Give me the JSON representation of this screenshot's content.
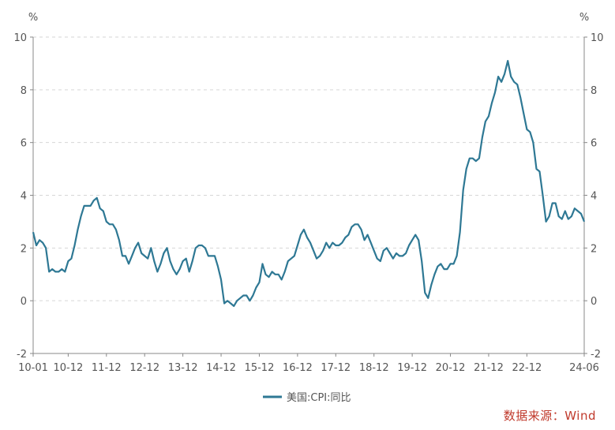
{
  "chart_data": {
    "type": "line",
    "title": "",
    "xlabel": "",
    "ylabel_left": "%",
    "ylabel_right": "%",
    "ylim": [
      -2,
      10
    ],
    "yticks": [
      -2,
      0,
      2,
      4,
      6,
      8,
      10
    ],
    "xlim": [
      "2010-01",
      "2024-06"
    ],
    "xticks": [
      "10-01",
      "10-12",
      "11-12",
      "12-12",
      "13-12",
      "14-12",
      "15-12",
      "16-12",
      "17-12",
      "18-12",
      "19-12",
      "20-12",
      "21-12",
      "22-12",
      "24-06"
    ],
    "grid": "horizontal-dashed",
    "legend": "bottom-center",
    "series": [
      {
        "name": "美国:CPI:同比",
        "color": "#2e7894",
        "x": [
          "2010-01",
          "2010-02",
          "2010-03",
          "2010-04",
          "2010-05",
          "2010-06",
          "2010-07",
          "2010-08",
          "2010-09",
          "2010-10",
          "2010-11",
          "2010-12",
          "2011-01",
          "2011-02",
          "2011-03",
          "2011-04",
          "2011-05",
          "2011-06",
          "2011-07",
          "2011-08",
          "2011-09",
          "2011-10",
          "2011-11",
          "2011-12",
          "2012-01",
          "2012-02",
          "2012-03",
          "2012-04",
          "2012-05",
          "2012-06",
          "2012-07",
          "2012-08",
          "2012-09",
          "2012-10",
          "2012-11",
          "2012-12",
          "2013-01",
          "2013-02",
          "2013-03",
          "2013-04",
          "2013-05",
          "2013-06",
          "2013-07",
          "2013-08",
          "2013-09",
          "2013-10",
          "2013-11",
          "2013-12",
          "2014-01",
          "2014-02",
          "2014-03",
          "2014-04",
          "2014-05",
          "2014-06",
          "2014-07",
          "2014-08",
          "2014-09",
          "2014-10",
          "2014-11",
          "2014-12",
          "2015-01",
          "2015-02",
          "2015-03",
          "2015-04",
          "2015-05",
          "2015-06",
          "2015-07",
          "2015-08",
          "2015-09",
          "2015-10",
          "2015-11",
          "2015-12",
          "2016-01",
          "2016-02",
          "2016-03",
          "2016-04",
          "2016-05",
          "2016-06",
          "2016-07",
          "2016-08",
          "2016-09",
          "2016-10",
          "2016-11",
          "2016-12",
          "2017-01",
          "2017-02",
          "2017-03",
          "2017-04",
          "2017-05",
          "2017-06",
          "2017-07",
          "2017-08",
          "2017-09",
          "2017-10",
          "2017-11",
          "2017-12",
          "2018-01",
          "2018-02",
          "2018-03",
          "2018-04",
          "2018-05",
          "2018-06",
          "2018-07",
          "2018-08",
          "2018-09",
          "2018-10",
          "2018-11",
          "2018-12",
          "2019-01",
          "2019-02",
          "2019-03",
          "2019-04",
          "2019-05",
          "2019-06",
          "2019-07",
          "2019-08",
          "2019-09",
          "2019-10",
          "2019-11",
          "2019-12",
          "2020-01",
          "2020-02",
          "2020-03",
          "2020-04",
          "2020-05",
          "2020-06",
          "2020-07",
          "2020-08",
          "2020-09",
          "2020-10",
          "2020-11",
          "2020-12",
          "2021-01",
          "2021-02",
          "2021-03",
          "2021-04",
          "2021-05",
          "2021-06",
          "2021-07",
          "2021-08",
          "2021-09",
          "2021-10",
          "2021-11",
          "2021-12",
          "2022-01",
          "2022-02",
          "2022-03",
          "2022-04",
          "2022-05",
          "2022-06",
          "2022-07",
          "2022-08",
          "2022-09",
          "2022-10",
          "2022-11",
          "2022-12",
          "2023-01",
          "2023-02",
          "2023-03",
          "2023-04",
          "2023-05",
          "2023-06",
          "2023-07",
          "2023-08",
          "2023-09",
          "2023-10",
          "2023-11",
          "2023-12",
          "2024-01",
          "2024-02",
          "2024-03",
          "2024-04",
          "2024-05",
          "2024-06"
        ],
        "values": [
          2.6,
          2.1,
          2.3,
          2.2,
          2.0,
          1.1,
          1.2,
          1.1,
          1.1,
          1.2,
          1.1,
          1.5,
          1.6,
          2.1,
          2.7,
          3.2,
          3.6,
          3.6,
          3.6,
          3.8,
          3.9,
          3.5,
          3.4,
          3.0,
          2.9,
          2.9,
          2.7,
          2.3,
          1.7,
          1.7,
          1.4,
          1.7,
          2.0,
          2.2,
          1.8,
          1.7,
          1.6,
          2.0,
          1.5,
          1.1,
          1.4,
          1.8,
          2.0,
          1.5,
          1.2,
          1.0,
          1.2,
          1.5,
          1.6,
          1.1,
          1.5,
          2.0,
          2.1,
          2.1,
          2.0,
          1.7,
          1.7,
          1.7,
          1.3,
          0.8,
          -0.1,
          0.0,
          -0.1,
          -0.2,
          0.0,
          0.1,
          0.2,
          0.2,
          0.0,
          0.2,
          0.5,
          0.7,
          1.4,
          1.0,
          0.9,
          1.1,
          1.0,
          1.0,
          0.8,
          1.1,
          1.5,
          1.6,
          1.7,
          2.1,
          2.5,
          2.7,
          2.4,
          2.2,
          1.9,
          1.6,
          1.7,
          1.9,
          2.2,
          2.0,
          2.2,
          2.1,
          2.1,
          2.2,
          2.4,
          2.5,
          2.8,
          2.9,
          2.9,
          2.7,
          2.3,
          2.5,
          2.2,
          1.9,
          1.6,
          1.5,
          1.9,
          2.0,
          1.8,
          1.6,
          1.8,
          1.7,
          1.7,
          1.8,
          2.1,
          2.3,
          2.5,
          2.3,
          1.5,
          0.3,
          0.1,
          0.6,
          1.0,
          1.3,
          1.4,
          1.2,
          1.2,
          1.4,
          1.4,
          1.7,
          2.6,
          4.2,
          5.0,
          5.4,
          5.4,
          5.3,
          5.4,
          6.2,
          6.8,
          7.0,
          7.5,
          7.9,
          8.5,
          8.3,
          8.6,
          9.1,
          8.5,
          8.3,
          8.2,
          7.7,
          7.1,
          6.5,
          6.4,
          6.0,
          5.0,
          4.9,
          4.0,
          3.0,
          3.2,
          3.7,
          3.7,
          3.2,
          3.1,
          3.4,
          3.1,
          3.2,
          3.5,
          3.4,
          3.3,
          3.0
        ]
      }
    ]
  },
  "source": "数据来源：Wind"
}
